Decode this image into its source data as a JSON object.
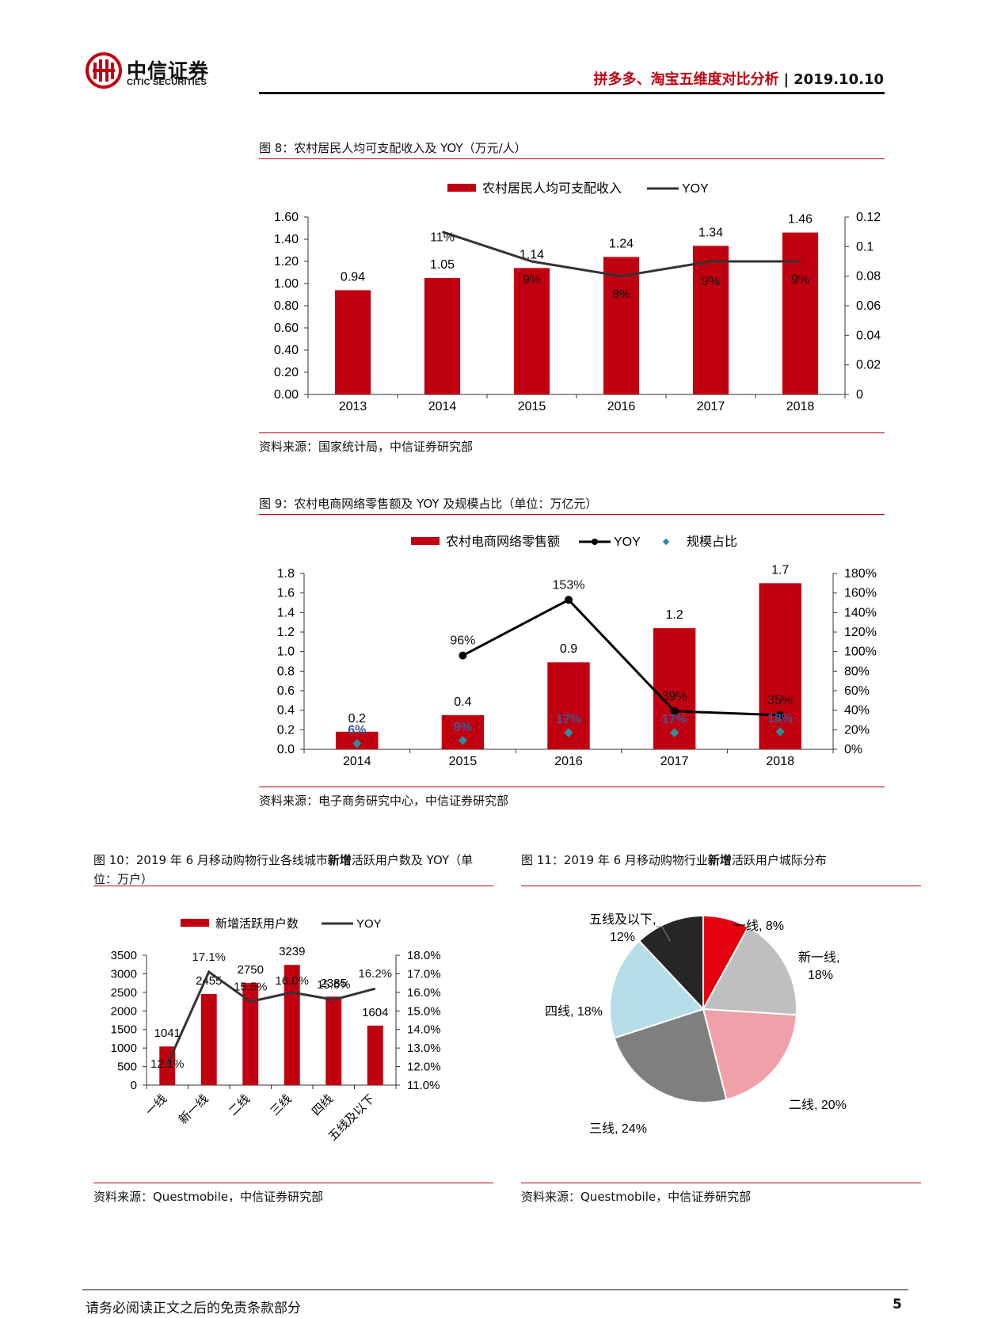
{
  "header": {
    "logo_cn": "中信证券",
    "logo_en": "CITIC SECURITIES",
    "report_title": "拼多多、淘宝五维度对比分析",
    "date": "2019.10.10"
  },
  "fig8": {
    "title": "图 8：农村居民人均可支配收入及 YOY（万元/人）",
    "source": "资料来源：国家统计局，中信证券研究部",
    "chart_data": {
      "type": "bar",
      "categories": [
        "2013",
        "2014",
        "2015",
        "2016",
        "2017",
        "2018"
      ],
      "series": [
        {
          "name": "农村居民人均可支配收入",
          "values": [
            0.94,
            1.05,
            1.14,
            1.24,
            1.34,
            1.46
          ],
          "labels": [
            "0.94",
            "1.05",
            "1.14",
            "1.24",
            "1.34",
            "1.46"
          ],
          "color": "#c00010"
        },
        {
          "name": "YOY",
          "type": "line",
          "axis": "right",
          "values": [
            null,
            0.11,
            0.09,
            0.08,
            0.09,
            0.09
          ],
          "labels": [
            "",
            "11%",
            "9%",
            "8%",
            "9%",
            "9%"
          ],
          "color": "#333333"
        }
      ],
      "ylim": [
        0,
        1.6
      ],
      "y_ticks": [
        "0.00",
        "0.20",
        "0.40",
        "0.60",
        "0.80",
        "1.00",
        "1.20",
        "1.40",
        "1.60"
      ],
      "y2lim": [
        0,
        0.12
      ],
      "y2_ticks": [
        "0",
        "0.02",
        "0.04",
        "0.06",
        "0.08",
        "0.1",
        "0.12"
      ],
      "legend_position": "top"
    }
  },
  "fig9": {
    "title": "图 9：农村电商网络零售额及 YOY 及规模占比（单位：万亿元）",
    "source": "资料来源：电子商务研究中心，中信证券研究部",
    "chart_data": {
      "type": "bar",
      "categories": [
        "2014",
        "2015",
        "2016",
        "2017",
        "2018"
      ],
      "series": [
        {
          "name": "农村电商网络零售额",
          "values": [
            0.18,
            0.35,
            0.89,
            1.24,
            1.7
          ],
          "labels": [
            "0.2",
            "0.4",
            "0.9",
            "1.2",
            "1.7"
          ],
          "color": "#c00010"
        },
        {
          "name": "YOY",
          "type": "line",
          "axis": "right",
          "values": [
            null,
            0.96,
            1.53,
            0.39,
            0.35
          ],
          "labels": [
            "",
            "96%",
            "153%",
            "39%",
            "35%"
          ],
          "color": "#000000"
        },
        {
          "name": "规模占比",
          "type": "scatter",
          "axis": "right",
          "values": [
            0.06,
            0.09,
            0.17,
            0.17,
            0.18
          ],
          "labels": [
            "6%",
            "9%",
            "17%",
            "17%",
            "18%"
          ],
          "color": "#2a8f9e"
        }
      ],
      "ylim": [
        0,
        1.8
      ],
      "y_ticks": [
        "0.0",
        "0.2",
        "0.4",
        "0.6",
        "0.8",
        "1.0",
        "1.2",
        "1.4",
        "1.6",
        "1.8"
      ],
      "y2lim": [
        0,
        1.8
      ],
      "y2_ticks": [
        "0%",
        "20%",
        "40%",
        "60%",
        "80%",
        "100%",
        "120%",
        "140%",
        "160%",
        "180%"
      ],
      "legend_position": "top"
    }
  },
  "fig10": {
    "title_line1_a": "图 10：2019 年 6 月移动购物行业各线城市",
    "title_line1_b": "新增",
    "title_line1_c": "活跃用户数及 YOY（单",
    "title_line2": "位：万户）",
    "source": "资料来源：Questmobile，中信证券研究部",
    "chart_data": {
      "type": "bar",
      "categories": [
        "一线",
        "新一线",
        "二线",
        "三线",
        "四线",
        "五线及以下"
      ],
      "series": [
        {
          "name": "新增活跃用户数",
          "values": [
            1041,
            2455,
            2750,
            3239,
            2385,
            1604
          ],
          "labels": [
            "1041",
            "2455",
            "2750",
            "3239",
            "2385",
            "1604"
          ],
          "color": "#c00010"
        },
        {
          "name": "YOY",
          "type": "line",
          "axis": "right",
          "values": [
            0.121,
            0.171,
            0.155,
            0.16,
            0.156,
            0.162
          ],
          "labels": [
            "12.1%",
            "17.1%",
            "15.5%",
            "16.0%",
            "15.6%",
            "16.2%"
          ],
          "color": "#333333"
        }
      ],
      "ylim": [
        0,
        3500
      ],
      "y_ticks": [
        "0",
        "500",
        "1000",
        "1500",
        "2000",
        "2500",
        "3000",
        "3500"
      ],
      "y2lim": [
        0.11,
        0.18
      ],
      "y2_ticks": [
        "11.0%",
        "12.0%",
        "13.0%",
        "14.0%",
        "15.0%",
        "16.0%",
        "17.0%",
        "18.0%"
      ],
      "legend_position": "top"
    }
  },
  "fig11": {
    "title_a": "图 11：2019 年 6 月移动购物行业",
    "title_b": "新增",
    "title_c": "活跃用户城际分布",
    "source": "资料来源：Questmobile，中信证券研究部",
    "chart_data": {
      "type": "pie",
      "slices": [
        {
          "label": "一线, 8%",
          "value": 8,
          "color": "#e3000f"
        },
        {
          "label": "新一线, 18%",
          "value": 18,
          "color": "#bfbfbf"
        },
        {
          "label": "二线, 20%",
          "value": 20,
          "color": "#f0a0a8"
        },
        {
          "label": "三线, 24%",
          "value": 24,
          "color": "#7f7f7f"
        },
        {
          "label": "四线, 18%",
          "value": 18,
          "color": "#b7dde8"
        },
        {
          "label": "五线及以下, 12%",
          "value": 12,
          "color": "#262626"
        }
      ],
      "display_labels": {
        "s0": "一线, 8%",
        "s1a": "新一线,",
        "s1b": "18%",
        "s2": "二线, 20%",
        "s3": "三线, 24%",
        "s4": "四线, 18%",
        "s5a": "五线及以下,",
        "s5b": "12%"
      }
    }
  },
  "footer": {
    "disclaimer": "请务必阅读正文之后的免责条款部分",
    "page": "5"
  }
}
